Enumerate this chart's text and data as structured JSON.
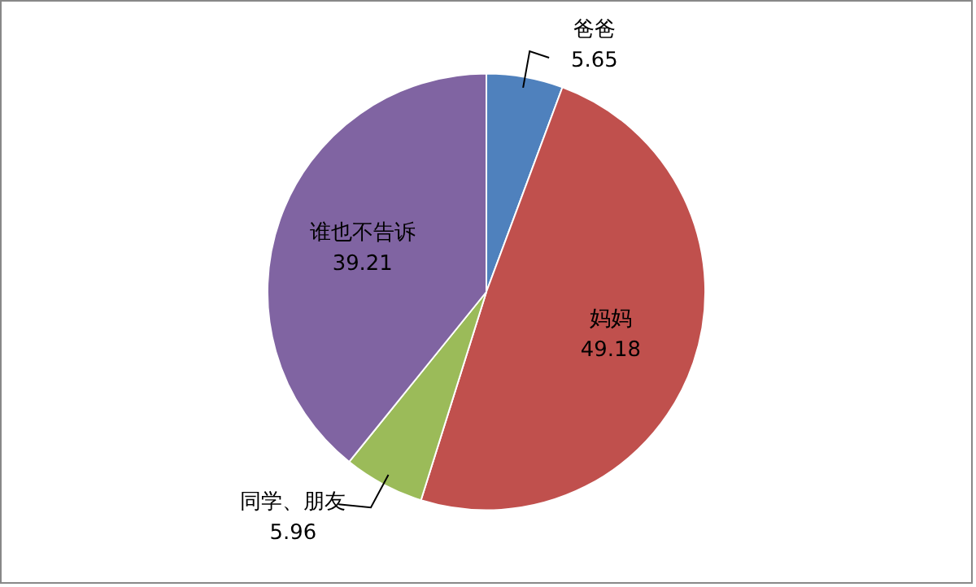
{
  "chart_data": {
    "type": "pie",
    "categories": [
      "爸爸",
      "妈妈",
      "同学、朋友",
      "谁也不告诉"
    ],
    "values": [
      5.65,
      49.18,
      5.96,
      39.21
    ],
    "colors": [
      "#4f81bd",
      "#c0504d",
      "#9bbb59",
      "#8064a2"
    ],
    "data_labels": true,
    "legend": false
  }
}
